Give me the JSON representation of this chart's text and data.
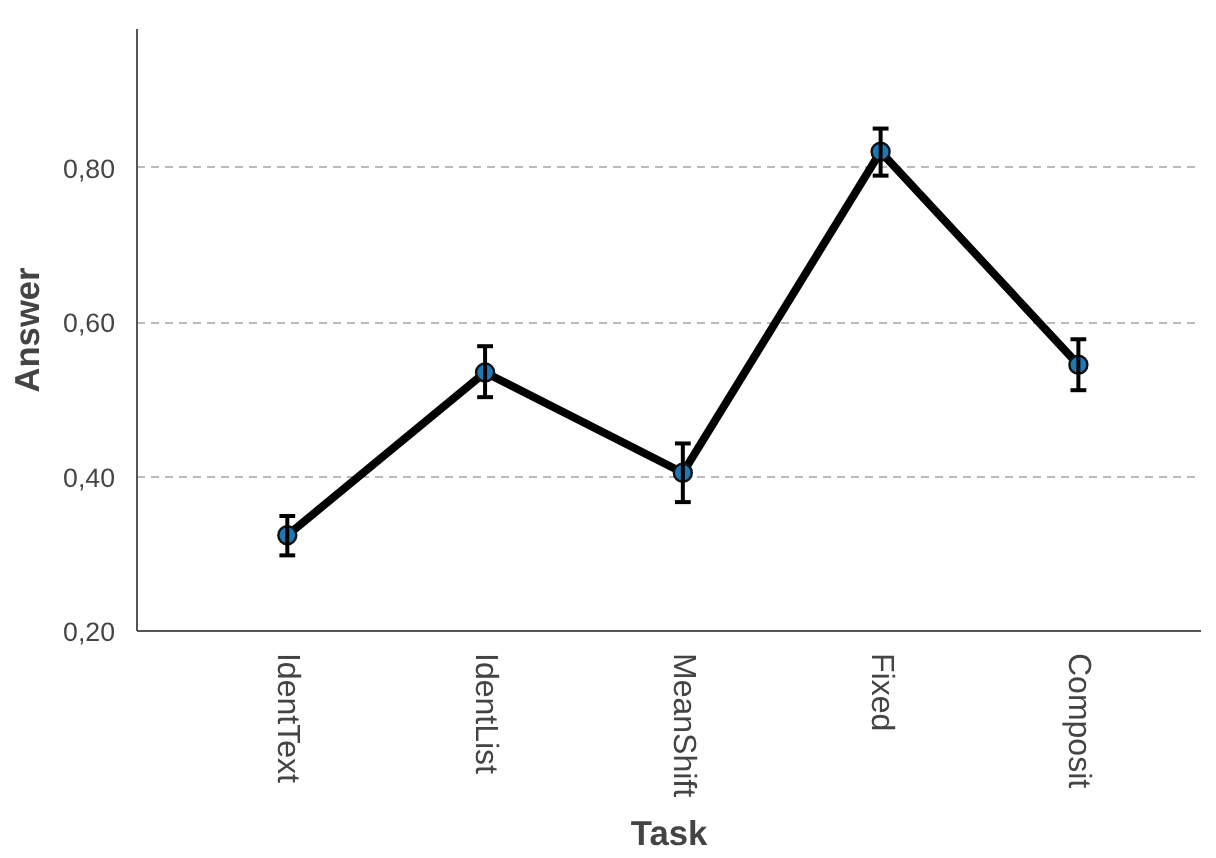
{
  "chart_data": {
    "type": "line",
    "xlabel": "Task",
    "ylabel": "Answer",
    "categories": [
      "IdentText",
      "IdentList",
      "MeanShift",
      "Fixed",
      "Composit"
    ],
    "series": [
      {
        "color": "#000000",
        "values": [
          0.324,
          0.535,
          0.405,
          0.821,
          0.545
        ],
        "errors": [
          [
            0.298,
            0.349
          ],
          [
            0.503,
            0.569
          ],
          [
            0.367,
            0.443
          ],
          [
            0.79,
            0.851
          ],
          [
            0.512,
            0.578
          ]
        ]
      }
    ],
    "marker": "circle",
    "line_style": "solid",
    "ylim": [
      0.2,
      0.98
    ],
    "yticks": [
      {
        "value": 0.2,
        "label": "0,20"
      },
      {
        "value": 0.4,
        "label": "0,40"
      },
      {
        "value": 0.6,
        "label": "0,60"
      },
      {
        "value": 0.8,
        "label": "0,80"
      }
    ],
    "grid": "y"
  }
}
